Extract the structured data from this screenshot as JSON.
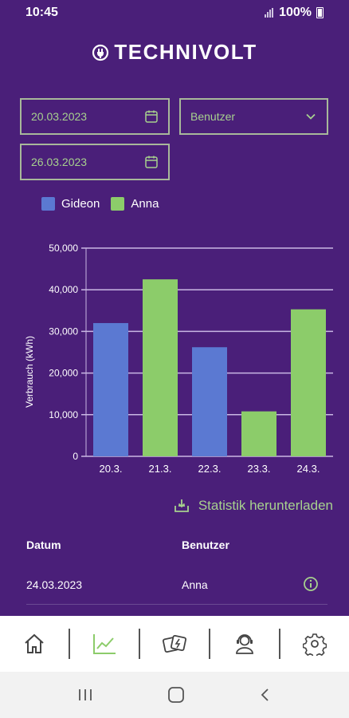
{
  "status_bar": {
    "time": "10:45",
    "battery": "100%"
  },
  "brand": {
    "name": "TECHNIVOLT"
  },
  "filters": {
    "date_from": "20.03.2023",
    "date_to": "26.03.2023",
    "user_select": "Benutzer"
  },
  "legend": [
    {
      "name": "Gideon",
      "color": "#5b79d2"
    },
    {
      "name": "Anna",
      "color": "#8ccc6a"
    }
  ],
  "chart_data": {
    "type": "bar",
    "categories": [
      "20.3.",
      "21.3.",
      "22.3.",
      "23.3.",
      "24.3."
    ],
    "values": [
      32000,
      42500,
      26200,
      10800,
      35300
    ],
    "series_of_bar": [
      "Gideon",
      "Anna",
      "Gideon",
      "Anna",
      "Anna"
    ],
    "ylabel": "Verbrauch (kWh)",
    "ylim": [
      0,
      50000
    ],
    "yticks": [
      "0",
      "10,000",
      "20,000",
      "30,000",
      "40,000",
      "50,000"
    ],
    "grid": true
  },
  "download": {
    "label": "Statistik herunterladen"
  },
  "table": {
    "headers": {
      "date": "Datum",
      "user": "Benutzer"
    },
    "rows": [
      {
        "date": "24.03.2023",
        "user": "Anna"
      }
    ]
  },
  "colors": {
    "background": "#4a1f79",
    "accent": "#a7d18e",
    "gideon": "#5b79d2",
    "anna": "#8ccc6a"
  }
}
